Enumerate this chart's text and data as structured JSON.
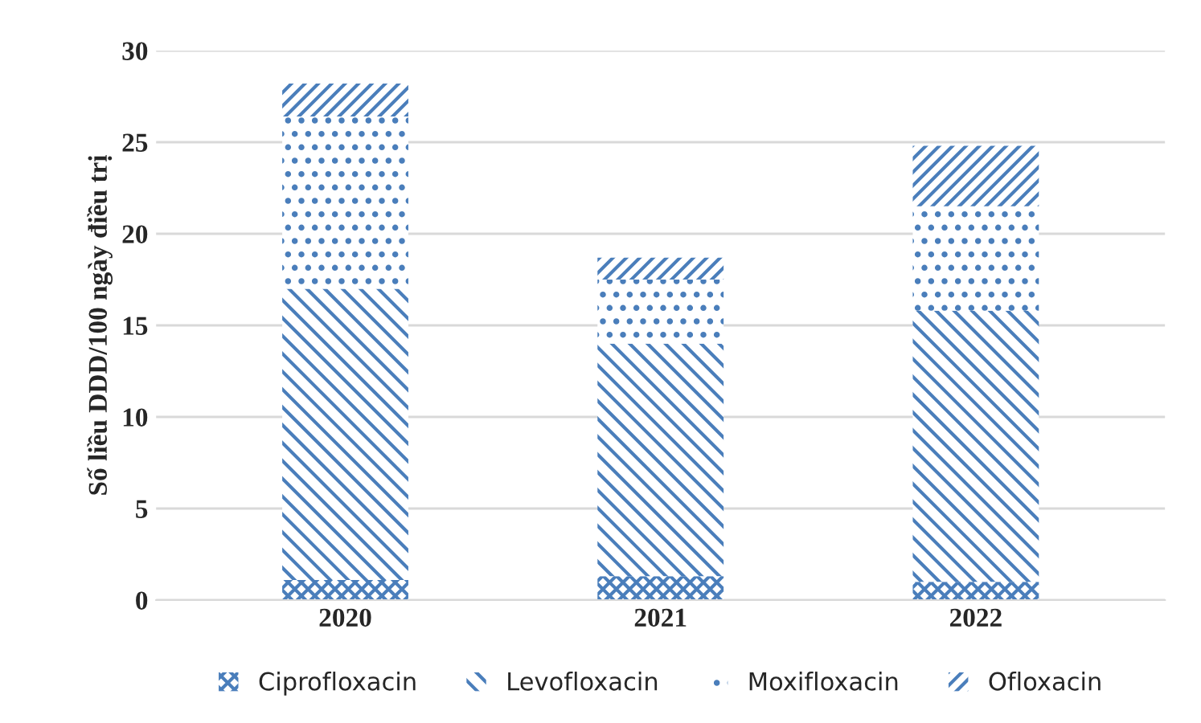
{
  "chart_data": {
    "type": "bar",
    "stacked": true,
    "ylabel": "Số liều DDD/100 ngày điều trị",
    "categories": [
      "2020",
      "2021",
      "2022"
    ],
    "series": [
      {
        "name": "Ciprofloxacin",
        "color": "#4a7ebb",
        "values": [
          1.1,
          1.3,
          1.0
        ]
      },
      {
        "name": "Levofloxacin",
        "color": "#4a7ebb",
        "values": [
          15.9,
          12.7,
          14.8
        ]
      },
      {
        "name": "Moxifloxacin",
        "color": "#4a7ebb",
        "values": [
          9.4,
          3.5,
          5.7
        ]
      },
      {
        "name": "Ofloxacin",
        "color": "#4a7ebb",
        "values": [
          1.8,
          1.2,
          3.3
        ]
      }
    ],
    "ylim": [
      0,
      30
    ],
    "yticks": [
      0,
      5,
      10,
      15,
      20,
      25,
      30
    ],
    "grid": "y",
    "legend": "bottom"
  }
}
